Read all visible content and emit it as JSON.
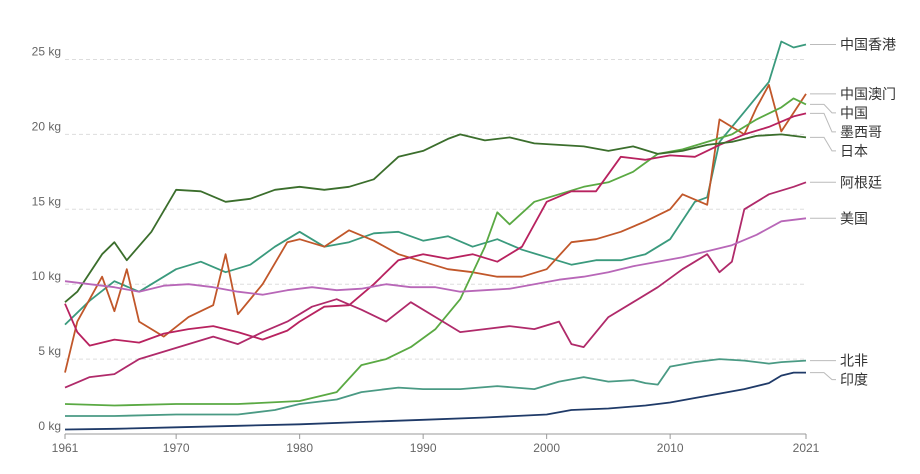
{
  "chart_data": {
    "type": "line",
    "title": "",
    "xlabel": "",
    "ylabel": "",
    "xlim": [
      1961,
      2021
    ],
    "ylim": [
      0,
      26.5
    ],
    "unit": "kg",
    "x_ticks": [
      1961,
      1970,
      1980,
      1990,
      2000,
      2010,
      2021
    ],
    "y_ticks": [
      "0 kg",
      "5 kg",
      "10 kg",
      "15 kg",
      "20 kg",
      "25 kg"
    ],
    "y_tick_values": [
      0,
      5,
      10,
      15,
      20,
      25
    ],
    "grid": true,
    "legend": "end-of-line labels on right",
    "series": [
      {
        "name": "中国香港",
        "color": "#3a9a7d",
        "points": [
          [
            1961,
            7.3
          ],
          [
            1963,
            8.9
          ],
          [
            1965,
            10.2
          ],
          [
            1967,
            9.5
          ],
          [
            1969,
            10.5
          ],
          [
            1970,
            11.0
          ],
          [
            1972,
            11.5
          ],
          [
            1974,
            10.8
          ],
          [
            1976,
            11.3
          ],
          [
            1978,
            12.5
          ],
          [
            1980,
            13.5
          ],
          [
            1982,
            12.5
          ],
          [
            1984,
            12.8
          ],
          [
            1986,
            13.4
          ],
          [
            1988,
            13.5
          ],
          [
            1990,
            12.9
          ],
          [
            1992,
            13.2
          ],
          [
            1994,
            12.5
          ],
          [
            1996,
            13.0
          ],
          [
            1998,
            12.3
          ],
          [
            2000,
            11.8
          ],
          [
            2002,
            11.3
          ],
          [
            2004,
            11.6
          ],
          [
            2006,
            11.6
          ],
          [
            2008,
            12.0
          ],
          [
            2010,
            13.0
          ],
          [
            2012,
            15.5
          ],
          [
            2013,
            15.8
          ],
          [
            2014,
            19.5
          ],
          [
            2016,
            21.5
          ],
          [
            2018,
            23.5
          ],
          [
            2019,
            26.2
          ],
          [
            2020,
            25.8
          ],
          [
            2021,
            26.0
          ]
        ]
      },
      {
        "name": "中国澳门",
        "color": "#c1572a",
        "points": [
          [
            1961,
            4.1
          ],
          [
            1962,
            7.5
          ],
          [
            1964,
            10.5
          ],
          [
            1965,
            8.2
          ],
          [
            1966,
            11.0
          ],
          [
            1967,
            7.5
          ],
          [
            1969,
            6.5
          ],
          [
            1971,
            7.8
          ],
          [
            1973,
            8.6
          ],
          [
            1974,
            12.0
          ],
          [
            1975,
            8.0
          ],
          [
            1977,
            10.0
          ],
          [
            1979,
            12.8
          ],
          [
            1980,
            13.0
          ],
          [
            1982,
            12.5
          ],
          [
            1984,
            13.6
          ],
          [
            1986,
            12.9
          ],
          [
            1988,
            12.0
          ],
          [
            1990,
            11.5
          ],
          [
            1992,
            11.0
          ],
          [
            1994,
            10.8
          ],
          [
            1996,
            10.5
          ],
          [
            1998,
            10.5
          ],
          [
            2000,
            11.0
          ],
          [
            2002,
            12.8
          ],
          [
            2004,
            13.0
          ],
          [
            2006,
            13.5
          ],
          [
            2008,
            14.2
          ],
          [
            2010,
            15.0
          ],
          [
            2011,
            16.0
          ],
          [
            2013,
            15.3
          ],
          [
            2014,
            21.0
          ],
          [
            2016,
            20.0
          ],
          [
            2017,
            21.8
          ],
          [
            2018,
            23.3
          ],
          [
            2019,
            20.2
          ],
          [
            2021,
            22.7
          ]
        ]
      },
      {
        "name": "中国",
        "color": "#5aa943",
        "points": [
          [
            1961,
            2.0
          ],
          [
            1965,
            1.9
          ],
          [
            1970,
            2.0
          ],
          [
            1975,
            2.0
          ],
          [
            1980,
            2.2
          ],
          [
            1983,
            2.8
          ],
          [
            1985,
            4.6
          ],
          [
            1987,
            5.0
          ],
          [
            1989,
            5.8
          ],
          [
            1991,
            7.0
          ],
          [
            1993,
            9.0
          ],
          [
            1995,
            12.5
          ],
          [
            1996,
            14.8
          ],
          [
            1997,
            14.0
          ],
          [
            1999,
            15.5
          ],
          [
            2001,
            16.0
          ],
          [
            2003,
            16.5
          ],
          [
            2005,
            16.8
          ],
          [
            2007,
            17.5
          ],
          [
            2009,
            18.7
          ],
          [
            2011,
            19.0
          ],
          [
            2013,
            19.5
          ],
          [
            2015,
            20.0
          ],
          [
            2017,
            21.0
          ],
          [
            2019,
            21.8
          ],
          [
            2020,
            22.4
          ],
          [
            2021,
            22.0
          ]
        ]
      },
      {
        "name": "墨西哥",
        "color": "#b8225f",
        "points": [
          [
            1961,
            8.7
          ],
          [
            1962,
            6.8
          ],
          [
            1963,
            5.9
          ],
          [
            1965,
            6.3
          ],
          [
            1967,
            6.1
          ],
          [
            1969,
            6.7
          ],
          [
            1971,
            7.0
          ],
          [
            1973,
            7.2
          ],
          [
            1975,
            6.8
          ],
          [
            1977,
            6.3
          ],
          [
            1979,
            6.9
          ],
          [
            1980,
            7.5
          ],
          [
            1982,
            8.5
          ],
          [
            1984,
            8.6
          ],
          [
            1986,
            10.0
          ],
          [
            1988,
            11.6
          ],
          [
            1990,
            12.0
          ],
          [
            1992,
            11.7
          ],
          [
            1994,
            12.0
          ],
          [
            1996,
            11.5
          ],
          [
            1998,
            12.5
          ],
          [
            2000,
            15.5
          ],
          [
            2002,
            16.2
          ],
          [
            2004,
            16.2
          ],
          [
            2006,
            18.5
          ],
          [
            2008,
            18.3
          ],
          [
            2010,
            18.6
          ],
          [
            2012,
            18.5
          ],
          [
            2014,
            19.3
          ],
          [
            2016,
            20.0
          ],
          [
            2018,
            20.5
          ],
          [
            2020,
            21.2
          ],
          [
            2021,
            21.4
          ]
        ]
      },
      {
        "name": "日本",
        "color": "#3b6e2c",
        "points": [
          [
            1961,
            8.8
          ],
          [
            1962,
            9.5
          ],
          [
            1964,
            12.0
          ],
          [
            1965,
            12.8
          ],
          [
            1966,
            11.6
          ],
          [
            1968,
            13.5
          ],
          [
            1970,
            16.3
          ],
          [
            1972,
            16.2
          ],
          [
            1974,
            15.5
          ],
          [
            1976,
            15.7
          ],
          [
            1978,
            16.3
          ],
          [
            1980,
            16.5
          ],
          [
            1982,
            16.3
          ],
          [
            1984,
            16.5
          ],
          [
            1986,
            17.0
          ],
          [
            1988,
            18.5
          ],
          [
            1990,
            18.9
          ],
          [
            1992,
            19.7
          ],
          [
            1993,
            20.0
          ],
          [
            1995,
            19.6
          ],
          [
            1997,
            19.8
          ],
          [
            1999,
            19.4
          ],
          [
            2001,
            19.3
          ],
          [
            2003,
            19.2
          ],
          [
            2005,
            18.9
          ],
          [
            2007,
            19.2
          ],
          [
            2009,
            18.7
          ],
          [
            2011,
            18.9
          ],
          [
            2013,
            19.3
          ],
          [
            2015,
            19.5
          ],
          [
            2017,
            19.9
          ],
          [
            2019,
            20.0
          ],
          [
            2021,
            19.8
          ]
        ]
      },
      {
        "name": "阿根廷",
        "color": "#b02a6a",
        "points": [
          [
            1961,
            3.1
          ],
          [
            1963,
            3.8
          ],
          [
            1965,
            4.0
          ],
          [
            1967,
            5.0
          ],
          [
            1969,
            5.5
          ],
          [
            1971,
            6.0
          ],
          [
            1973,
            6.5
          ],
          [
            1975,
            6.0
          ],
          [
            1977,
            6.8
          ],
          [
            1979,
            7.5
          ],
          [
            1981,
            8.5
          ],
          [
            1983,
            9.0
          ],
          [
            1985,
            8.3
          ],
          [
            1987,
            7.5
          ],
          [
            1989,
            8.8
          ],
          [
            1991,
            7.8
          ],
          [
            1993,
            6.8
          ],
          [
            1995,
            7.0
          ],
          [
            1997,
            7.2
          ],
          [
            1999,
            7.0
          ],
          [
            2001,
            7.5
          ],
          [
            2002,
            6.0
          ],
          [
            2003,
            5.8
          ],
          [
            2005,
            7.8
          ],
          [
            2007,
            8.8
          ],
          [
            2009,
            9.8
          ],
          [
            2011,
            11.0
          ],
          [
            2013,
            12.0
          ],
          [
            2014,
            10.8
          ],
          [
            2015,
            11.5
          ],
          [
            2016,
            15.0
          ],
          [
            2018,
            16.0
          ],
          [
            2020,
            16.5
          ],
          [
            2021,
            16.8
          ]
        ]
      },
      {
        "name": "美国",
        "color": "#b867b8",
        "points": [
          [
            1961,
            10.2
          ],
          [
            1963,
            10.0
          ],
          [
            1965,
            9.8
          ],
          [
            1967,
            9.5
          ],
          [
            1969,
            9.9
          ],
          [
            1971,
            10.0
          ],
          [
            1973,
            9.8
          ],
          [
            1975,
            9.5
          ],
          [
            1977,
            9.3
          ],
          [
            1979,
            9.6
          ],
          [
            1981,
            9.8
          ],
          [
            1983,
            9.6
          ],
          [
            1985,
            9.7
          ],
          [
            1987,
            10.0
          ],
          [
            1989,
            9.8
          ],
          [
            1991,
            9.8
          ],
          [
            1993,
            9.5
          ],
          [
            1995,
            9.6
          ],
          [
            1997,
            9.7
          ],
          [
            1999,
            10.0
          ],
          [
            2001,
            10.3
          ],
          [
            2003,
            10.5
          ],
          [
            2005,
            10.8
          ],
          [
            2007,
            11.2
          ],
          [
            2009,
            11.5
          ],
          [
            2011,
            11.8
          ],
          [
            2013,
            12.2
          ],
          [
            2015,
            12.6
          ],
          [
            2017,
            13.3
          ],
          [
            2019,
            14.2
          ],
          [
            2021,
            14.4
          ]
        ]
      },
      {
        "name": "北非",
        "color": "#4a9a84",
        "points": [
          [
            1961,
            1.2
          ],
          [
            1965,
            1.2
          ],
          [
            1970,
            1.3
          ],
          [
            1975,
            1.3
          ],
          [
            1978,
            1.6
          ],
          [
            1980,
            2.0
          ],
          [
            1983,
            2.3
          ],
          [
            1985,
            2.8
          ],
          [
            1988,
            3.1
          ],
          [
            1990,
            3.0
          ],
          [
            1993,
            3.0
          ],
          [
            1996,
            3.2
          ],
          [
            1999,
            3.0
          ],
          [
            2001,
            3.5
          ],
          [
            2003,
            3.8
          ],
          [
            2005,
            3.5
          ],
          [
            2007,
            3.6
          ],
          [
            2008,
            3.4
          ],
          [
            2009,
            3.3
          ],
          [
            2010,
            4.5
          ],
          [
            2012,
            4.8
          ],
          [
            2014,
            5.0
          ],
          [
            2016,
            4.9
          ],
          [
            2018,
            4.7
          ],
          [
            2019,
            4.8
          ],
          [
            2021,
            4.9
          ]
        ]
      },
      {
        "name": "印度",
        "color": "#1f3a68",
        "points": [
          [
            1961,
            0.3
          ],
          [
            1965,
            0.35
          ],
          [
            1970,
            0.45
          ],
          [
            1975,
            0.55
          ],
          [
            1980,
            0.65
          ],
          [
            1985,
            0.8
          ],
          [
            1990,
            0.95
          ],
          [
            1995,
            1.1
          ],
          [
            2000,
            1.3
          ],
          [
            2002,
            1.6
          ],
          [
            2005,
            1.7
          ],
          [
            2008,
            1.9
          ],
          [
            2010,
            2.1
          ],
          [
            2012,
            2.4
          ],
          [
            2014,
            2.7
          ],
          [
            2016,
            3.0
          ],
          [
            2018,
            3.4
          ],
          [
            2019,
            3.9
          ],
          [
            2020,
            4.1
          ],
          [
            2021,
            4.1
          ]
        ]
      }
    ],
    "labels": [
      {
        "text": "中国香港",
        "series": 0
      },
      {
        "text": "中国澳门",
        "series": 1
      },
      {
        "text": "中国",
        "series": 2
      },
      {
        "text": "墨西哥",
        "series": 3
      },
      {
        "text": "日本",
        "series": 4
      },
      {
        "text": "阿根廷",
        "series": 5
      },
      {
        "text": "美国",
        "series": 6
      },
      {
        "text": "北非",
        "series": 7
      },
      {
        "text": "印度",
        "series": 8
      }
    ]
  }
}
